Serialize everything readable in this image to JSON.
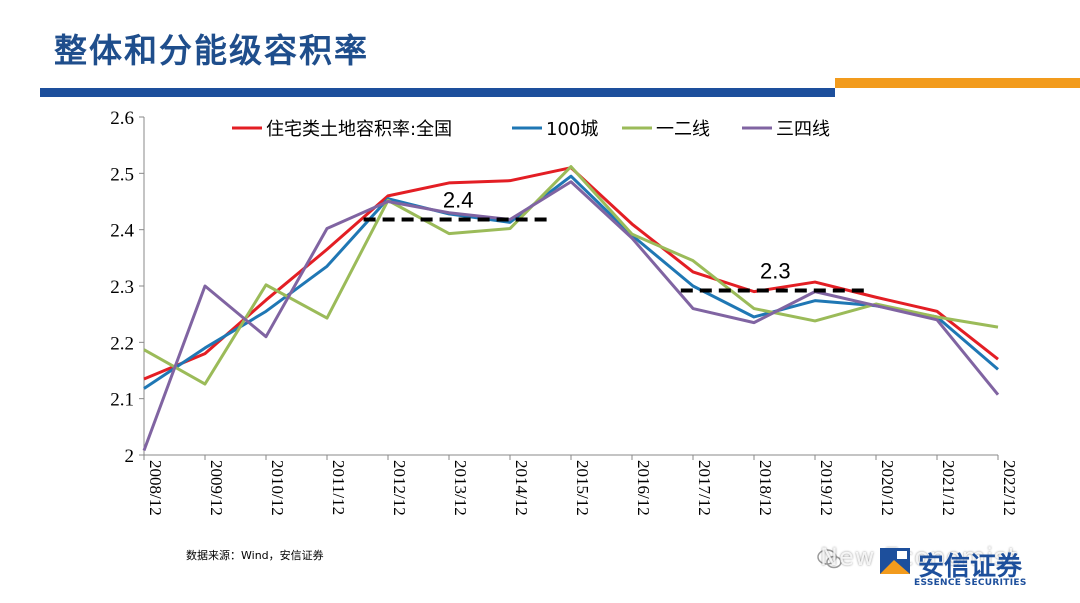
{
  "page": {
    "title": "整体和分能级容积率",
    "source": "数据来源：Wind，安信证券",
    "watermark": "New Economist",
    "logo_cn": "安信证券",
    "logo_en": "ESSENCE SECURITIES"
  },
  "colors": {
    "title": "#1f4e8c",
    "rule_blue": "#1d4f9c",
    "rule_orange": "#f29b1d"
  },
  "chart_data": {
    "type": "line",
    "title": "",
    "xlabel": "",
    "ylabel": "",
    "ylim": [
      2,
      2.6
    ],
    "yticks": [
      2,
      2.1,
      2.2,
      2.3,
      2.4,
      2.5,
      2.6
    ],
    "ytick_labels": [
      "2",
      "2.1",
      "2.2",
      "2.3",
      "2.4",
      "2.5",
      "2.6"
    ],
    "grid": false,
    "legend_position": "top",
    "categories": [
      "2008/12",
      "2009/12",
      "2010/12",
      "2011/12",
      "2012/12",
      "2013/12",
      "2014/12",
      "2015/12",
      "2016/12",
      "2017/12",
      "2018/12",
      "2019/12",
      "2020/12",
      "2021/12",
      "2022/12"
    ],
    "series": [
      {
        "name": "住宅类土地容积率:全国",
        "color": "#e31e24",
        "values": [
          2.135,
          2.18,
          2.275,
          2.365,
          2.46,
          2.483,
          2.487,
          2.51,
          2.41,
          2.325,
          2.29,
          2.307,
          2.28,
          2.255,
          2.17
        ]
      },
      {
        "name": "100城",
        "color": "#1f77b4",
        "values": [
          2.118,
          2.19,
          2.255,
          2.335,
          2.455,
          2.428,
          2.413,
          2.495,
          2.39,
          2.3,
          2.245,
          2.274,
          2.265,
          2.245,
          2.152
        ]
      },
      {
        "name": "一二线",
        "color": "#9bbb59",
        "values": [
          2.187,
          2.126,
          2.302,
          2.243,
          2.452,
          2.393,
          2.402,
          2.512,
          2.392,
          2.345,
          2.26,
          2.238,
          2.268,
          2.245,
          2.227
        ]
      },
      {
        "name": "三四线",
        "color": "#8064a2",
        "values": [
          2.008,
          2.3,
          2.21,
          2.402,
          2.45,
          2.43,
          2.418,
          2.485,
          2.385,
          2.26,
          2.235,
          2.29,
          2.265,
          2.24,
          2.107
        ]
      }
    ],
    "reference_lines": [
      {
        "label": "2.4",
        "value": 2.418,
        "from_index": 3.6,
        "to_index": 6.7
      },
      {
        "label": "2.3",
        "value": 2.292,
        "from_index": 8.8,
        "to_index": 11.9
      }
    ]
  }
}
